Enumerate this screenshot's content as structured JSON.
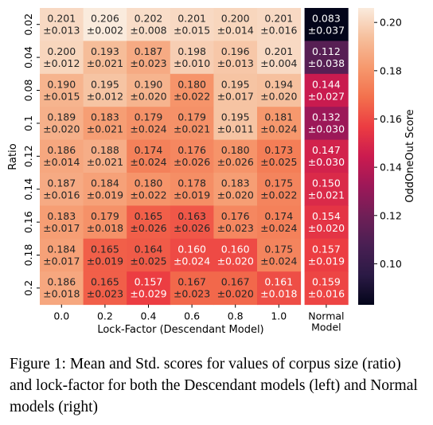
{
  "chart_data": {
    "type": "heatmap",
    "row_axis_label": "Ratio",
    "col_axis_label": "Lock-Factor (Descendant Model)",
    "rows": [
      "0.02",
      "0.04",
      "0.08",
      "0.1",
      "0.12",
      "0.14",
      "0.16",
      "0.18",
      "0.2"
    ],
    "cols": [
      "0.0",
      "0.2",
      "0.4",
      "0.6",
      "0.8",
      "1.0"
    ],
    "normal_col_label": [
      "Normal",
      "Model"
    ],
    "cells": [
      [
        [
          "0.201",
          "±0.013"
        ],
        [
          "0.206",
          "±0.002"
        ],
        [
          "0.202",
          "±0.008"
        ],
        [
          "0.201",
          "±0.015"
        ],
        [
          "0.200",
          "±0.014"
        ],
        [
          "0.201",
          "±0.016"
        ],
        [
          "0.083",
          "±0.037"
        ]
      ],
      [
        [
          "0.200",
          "±0.012"
        ],
        [
          "0.193",
          "±0.021"
        ],
        [
          "0.187",
          "±0.023"
        ],
        [
          "0.198",
          "±0.010"
        ],
        [
          "0.196",
          "±0.013"
        ],
        [
          "0.201",
          "±0.004"
        ],
        [
          "0.112",
          "±0.038"
        ]
      ],
      [
        [
          "0.190",
          "±0.015"
        ],
        [
          "0.195",
          "±0.012"
        ],
        [
          "0.190",
          "±0.020"
        ],
        [
          "0.180",
          "±0.022"
        ],
        [
          "0.195",
          "±0.017"
        ],
        [
          "0.194",
          "±0.020"
        ],
        [
          "0.144",
          "±0.027"
        ]
      ],
      [
        [
          "0.189",
          "±0.020"
        ],
        [
          "0.183",
          "±0.021"
        ],
        [
          "0.179",
          "±0.024"
        ],
        [
          "0.179",
          "±0.021"
        ],
        [
          "0.195",
          "±0.011"
        ],
        [
          "0.181",
          "±0.024"
        ],
        [
          "0.132",
          "±0.030"
        ]
      ],
      [
        [
          "0.186",
          "±0.014"
        ],
        [
          "0.188",
          "±0.021"
        ],
        [
          "0.174",
          "±0.024"
        ],
        [
          "0.176",
          "±0.026"
        ],
        [
          "0.180",
          "±0.026"
        ],
        [
          "0.173",
          "±0.025"
        ],
        [
          "0.147",
          "±0.030"
        ]
      ],
      [
        [
          "0.187",
          "±0.016"
        ],
        [
          "0.184",
          "±0.019"
        ],
        [
          "0.180",
          "±0.022"
        ],
        [
          "0.178",
          "±0.019"
        ],
        [
          "0.183",
          "±0.020"
        ],
        [
          "0.175",
          "±0.022"
        ],
        [
          "0.150",
          "±0.021"
        ]
      ],
      [
        [
          "0.183",
          "±0.017"
        ],
        [
          "0.179",
          "±0.018"
        ],
        [
          "0.165",
          "±0.026"
        ],
        [
          "0.163",
          "±0.026"
        ],
        [
          "0.176",
          "±0.023"
        ],
        [
          "0.174",
          "±0.024"
        ],
        [
          "0.154",
          "±0.020"
        ]
      ],
      [
        [
          "0.184",
          "±0.017"
        ],
        [
          "0.165",
          "±0.019"
        ],
        [
          "0.164",
          "±0.025"
        ],
        [
          "0.160",
          "±0.024"
        ],
        [
          "0.160",
          "±0.020"
        ],
        [
          "0.175",
          "±0.024"
        ],
        [
          "0.157",
          "±0.019"
        ]
      ],
      [
        [
          "0.186",
          "±0.018"
        ],
        [
          "0.165",
          "±0.023"
        ],
        [
          "0.157",
          "±0.029"
        ],
        [
          "0.167",
          "±0.023"
        ],
        [
          "0.167",
          "±0.020"
        ],
        [
          "0.161",
          "±0.018"
        ],
        [
          "0.159",
          "±0.016"
        ]
      ]
    ],
    "colorbar": {
      "label": "OddOneOut Score",
      "min": 0.083,
      "max": 0.206,
      "ticks": [
        "0.20",
        "0.18",
        "0.16",
        "0.14",
        "0.12",
        "0.10"
      ],
      "colormap": "rocket"
    }
  },
  "caption": "Figure 1: Mean and Std. scores for values of corpus size (ratio) and lock-factor for both the Descendant models (left) and Normal models (right)"
}
